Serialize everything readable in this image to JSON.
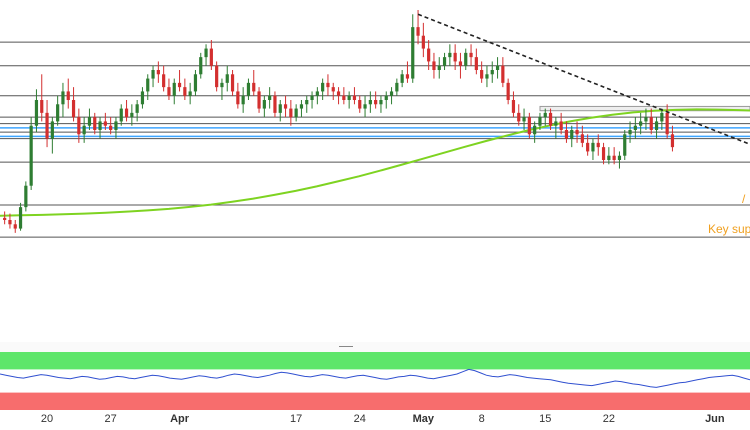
{
  "chart_data": {
    "type": "candlestick",
    "x_tick_labels": [
      {
        "label": "20",
        "bar": 8,
        "bold": false
      },
      {
        "label": "27",
        "bar": 20,
        "bold": false
      },
      {
        "label": "Apr",
        "bar": 33,
        "bold": true
      },
      {
        "label": "17",
        "bar": 55,
        "bold": false
      },
      {
        "label": "24",
        "bar": 67,
        "bold": false
      },
      {
        "label": "May",
        "bar": 79,
        "bold": true
      },
      {
        "label": "8",
        "bar": 90,
        "bold": false
      },
      {
        "label": "15",
        "bar": 102,
        "bold": false
      },
      {
        "label": "22",
        "bar": 114,
        "bold": false
      },
      {
        "label": "Jun",
        "bar": 134,
        "bold": true
      }
    ],
    "price_range": [
      0,
      100
    ],
    "candles": [
      [
        15,
        18,
        12,
        14
      ],
      [
        14,
        17,
        10,
        12
      ],
      [
        12,
        14,
        8,
        10
      ],
      [
        10,
        22,
        9,
        20
      ],
      [
        20,
        32,
        18,
        30
      ],
      [
        30,
        62,
        28,
        58
      ],
      [
        58,
        75,
        55,
        70
      ],
      [
        70,
        82,
        60,
        64
      ],
      [
        64,
        70,
        48,
        52
      ],
      [
        52,
        62,
        45,
        60
      ],
      [
        60,
        72,
        58,
        68
      ],
      [
        68,
        78,
        62,
        74
      ],
      [
        74,
        80,
        66,
        70
      ],
      [
        70,
        76,
        60,
        62
      ],
      [
        62,
        66,
        50,
        54
      ],
      [
        54,
        62,
        50,
        58
      ],
      [
        58,
        66,
        56,
        62
      ],
      [
        62,
        64,
        54,
        56
      ],
      [
        56,
        62,
        52,
        60
      ],
      [
        60,
        64,
        56,
        58
      ],
      [
        58,
        62,
        54,
        56
      ],
      [
        56,
        62,
        52,
        60
      ],
      [
        60,
        68,
        58,
        66
      ],
      [
        66,
        70,
        60,
        62
      ],
      [
        62,
        68,
        58,
        64
      ],
      [
        64,
        70,
        60,
        68
      ],
      [
        68,
        76,
        66,
        74
      ],
      [
        74,
        82,
        70,
        80
      ],
      [
        80,
        86,
        76,
        84
      ],
      [
        84,
        88,
        78,
        82
      ],
      [
        82,
        86,
        74,
        76
      ],
      [
        76,
        80,
        70,
        72
      ],
      [
        72,
        80,
        68,
        78
      ],
      [
        78,
        84,
        74,
        76
      ],
      [
        76,
        80,
        70,
        72
      ],
      [
        72,
        78,
        68,
        74
      ],
      [
        74,
        84,
        72,
        82
      ],
      [
        82,
        92,
        80,
        90
      ],
      [
        90,
        96,
        86,
        94
      ],
      [
        94,
        98,
        84,
        86
      ],
      [
        86,
        88,
        74,
        76
      ],
      [
        76,
        80,
        70,
        78
      ],
      [
        78,
        86,
        74,
        82
      ],
      [
        82,
        84,
        72,
        74
      ],
      [
        74,
        78,
        66,
        68
      ],
      [
        68,
        76,
        64,
        72
      ],
      [
        72,
        80,
        70,
        78
      ],
      [
        78,
        84,
        72,
        74
      ],
      [
        74,
        76,
        64,
        66
      ],
      [
        66,
        72,
        62,
        70
      ],
      [
        70,
        76,
        66,
        72
      ],
      [
        72,
        74,
        62,
        64
      ],
      [
        64,
        70,
        60,
        68
      ],
      [
        68,
        72,
        62,
        66
      ],
      [
        66,
        70,
        58,
        62
      ],
      [
        62,
        68,
        60,
        66
      ],
      [
        66,
        70,
        62,
        68
      ],
      [
        68,
        72,
        64,
        70
      ],
      [
        70,
        74,
        66,
        72
      ],
      [
        72,
        76,
        68,
        74
      ],
      [
        74,
        80,
        70,
        78
      ],
      [
        78,
        82,
        72,
        76
      ],
      [
        76,
        78,
        70,
        74
      ],
      [
        74,
        76,
        68,
        72
      ],
      [
        72,
        76,
        68,
        70
      ],
      [
        70,
        74,
        66,
        72
      ],
      [
        72,
        76,
        68,
        70
      ],
      [
        70,
        72,
        64,
        66
      ],
      [
        66,
        72,
        62,
        68
      ],
      [
        68,
        74,
        64,
        70
      ],
      [
        70,
        74,
        66,
        68
      ],
      [
        68,
        72,
        64,
        70
      ],
      [
        70,
        74,
        66,
        72
      ],
      [
        72,
        76,
        68,
        74
      ],
      [
        74,
        80,
        72,
        78
      ],
      [
        78,
        84,
        76,
        82
      ],
      [
        82,
        88,
        78,
        80
      ],
      [
        80,
        110,
        78,
        104
      ],
      [
        104,
        112,
        96,
        100
      ],
      [
        100,
        106,
        90,
        94
      ],
      [
        94,
        98,
        84,
        88
      ],
      [
        88,
        92,
        80,
        84
      ],
      [
        84,
        90,
        80,
        86
      ],
      [
        86,
        92,
        84,
        90
      ],
      [
        90,
        96,
        86,
        92
      ],
      [
        92,
        96,
        84,
        88
      ],
      [
        88,
        92,
        80,
        86
      ],
      [
        86,
        94,
        84,
        92
      ],
      [
        92,
        96,
        86,
        90
      ],
      [
        90,
        94,
        82,
        84
      ],
      [
        84,
        88,
        78,
        80
      ],
      [
        80,
        86,
        76,
        82
      ],
      [
        82,
        88,
        78,
        84
      ],
      [
        84,
        90,
        80,
        86
      ],
      [
        86,
        90,
        76,
        78
      ],
      [
        78,
        80,
        68,
        70
      ],
      [
        70,
        74,
        62,
        64
      ],
      [
        64,
        68,
        58,
        60
      ],
      [
        60,
        66,
        56,
        62
      ],
      [
        62,
        64,
        52,
        54
      ],
      [
        54,
        60,
        50,
        58
      ],
      [
        58,
        64,
        56,
        62
      ],
      [
        62,
        66,
        58,
        64
      ],
      [
        64,
        66,
        56,
        58
      ],
      [
        58,
        62,
        52,
        60
      ],
      [
        60,
        64,
        54,
        56
      ],
      [
        56,
        60,
        50,
        52
      ],
      [
        52,
        58,
        48,
        56
      ],
      [
        56,
        60,
        50,
        54
      ],
      [
        54,
        58,
        48,
        50
      ],
      [
        50,
        54,
        44,
        46
      ],
      [
        46,
        52,
        42,
        50
      ],
      [
        50,
        54,
        44,
        48
      ],
      [
        48,
        50,
        40,
        42
      ],
      [
        42,
        48,
        40,
        44
      ],
      [
        44,
        48,
        40,
        42
      ],
      [
        42,
        46,
        38,
        44
      ],
      [
        44,
        56,
        42,
        54
      ],
      [
        54,
        60,
        50,
        56
      ],
      [
        56,
        62,
        52,
        58
      ],
      [
        58,
        64,
        54,
        60
      ],
      [
        60,
        66,
        56,
        62
      ],
      [
        62,
        66,
        54,
        56
      ],
      [
        56,
        62,
        52,
        60
      ],
      [
        60,
        66,
        56,
        64
      ],
      [
        64,
        68,
        52,
        54
      ],
      [
        54,
        58,
        46,
        48
      ]
    ],
    "ma_200": [
      16,
      16.2,
      16.4,
      16.7,
      17.0,
      17.4,
      17.9,
      18.5,
      19.2,
      20.1,
      21.2,
      22.5,
      24.0,
      25.7,
      27.6,
      29.7,
      32.0,
      34.4,
      37.0,
      39.7,
      42.5,
      45.3,
      48.1,
      50.8,
      53.4,
      55.8,
      58.0,
      60.0,
      61.7,
      63.1,
      64.2,
      65.0,
      65.4,
      65.6,
      65.5,
      65.3,
      64.9
    ],
    "horizontal_levels": [
      97,
      86,
      72,
      62,
      59,
      55,
      52,
      41,
      21,
      6
    ],
    "highlighted_levels": [
      57,
      53
    ],
    "resistance_zone": [
      65,
      67
    ],
    "trendline": {
      "from_bar": 78,
      "from_value": 110,
      "to_bar": 142,
      "to_value": 48
    },
    "annotations": [
      "Key sup"
    ],
    "rsi_panel": {
      "overbought_band": [
        70,
        100
      ],
      "oversold_band": [
        0,
        30
      ],
      "values": [
        62,
        60,
        58,
        56,
        55,
        57,
        59,
        61,
        60,
        58,
        56,
        55,
        54,
        56,
        58,
        57,
        55,
        53,
        54,
        56,
        58,
        57,
        55,
        54,
        56,
        58,
        60,
        59,
        57,
        55,
        54,
        53,
        55,
        57,
        59,
        58,
        56,
        55,
        57,
        60,
        62,
        61,
        59,
        57,
        56,
        58,
        60,
        63,
        65,
        64,
        62,
        60,
        58,
        57,
        59,
        61,
        60,
        58,
        56,
        55,
        57,
        59,
        60,
        58,
        56,
        54,
        53,
        55,
        57,
        58,
        60,
        59,
        57,
        55,
        54,
        56,
        58,
        60,
        62,
        66,
        70,
        68,
        64,
        60,
        58,
        57,
        59,
        61,
        60,
        58,
        56,
        55,
        54,
        53,
        52,
        50,
        48,
        46,
        45,
        44,
        43,
        42,
        44,
        46,
        48,
        50,
        49,
        47,
        45,
        44,
        42,
        40,
        39,
        41,
        43,
        45,
        47,
        48,
        50,
        52,
        54,
        56,
        57,
        58,
        59,
        60,
        58,
        55,
        52
      ]
    },
    "colors": {
      "bull": "#2e7d32",
      "bear": "#d32f2f",
      "ma": "#7ed321",
      "trendline": "#222222",
      "level": "#555555",
      "highlight": "#3da5ff",
      "rsi_line": "#3050d0",
      "overbought": "#5ee66a",
      "oversold": "#f76d6d",
      "annotation": "#f0a020"
    }
  }
}
